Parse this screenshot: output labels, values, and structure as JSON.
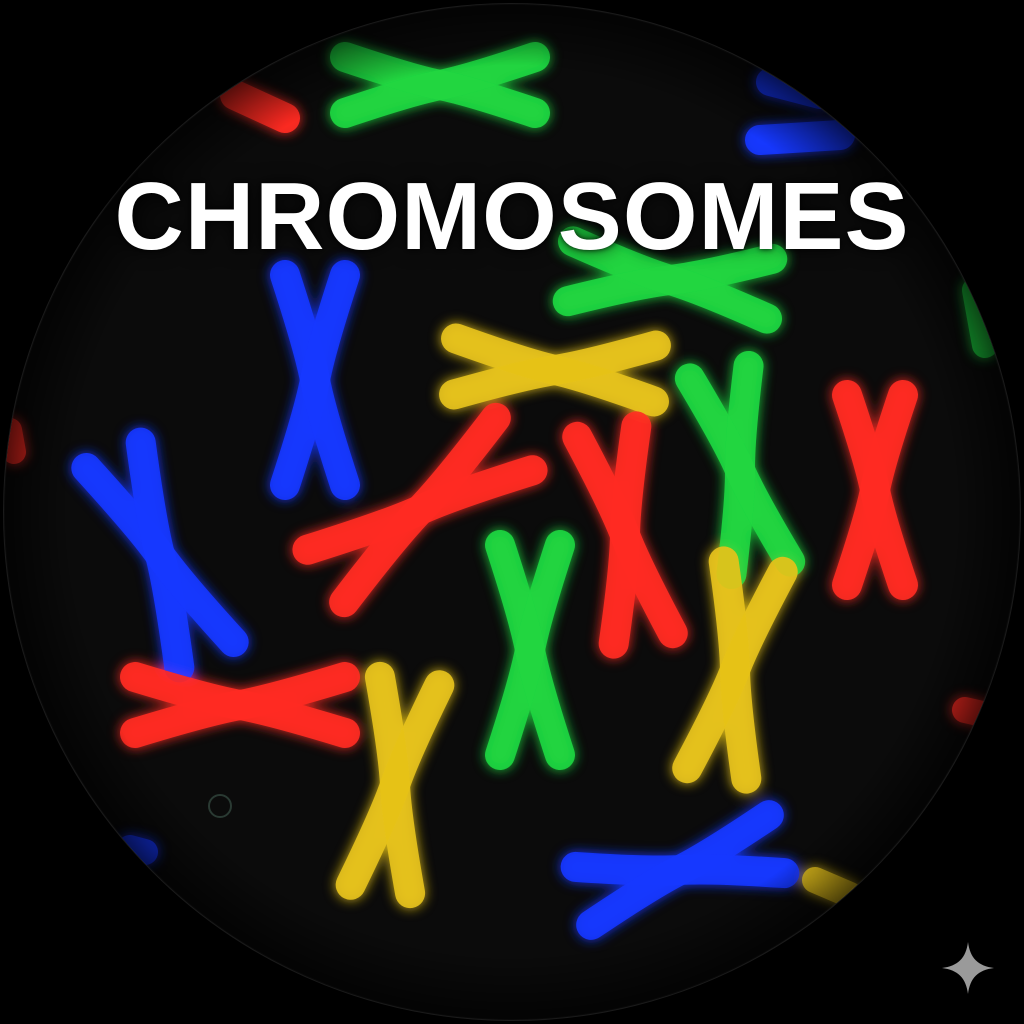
{
  "title": "CHROMOSOMES",
  "colors": {
    "background": "#000000",
    "field": "#0b0b0b",
    "title": "#ffffff",
    "red": "#ff2a22",
    "green": "#1fd640",
    "blue": "#1437ff",
    "yellow": "#e6c21a",
    "sparkle": "#9a9a9a"
  },
  "icons": {
    "corner": "sparkle-icon"
  }
}
